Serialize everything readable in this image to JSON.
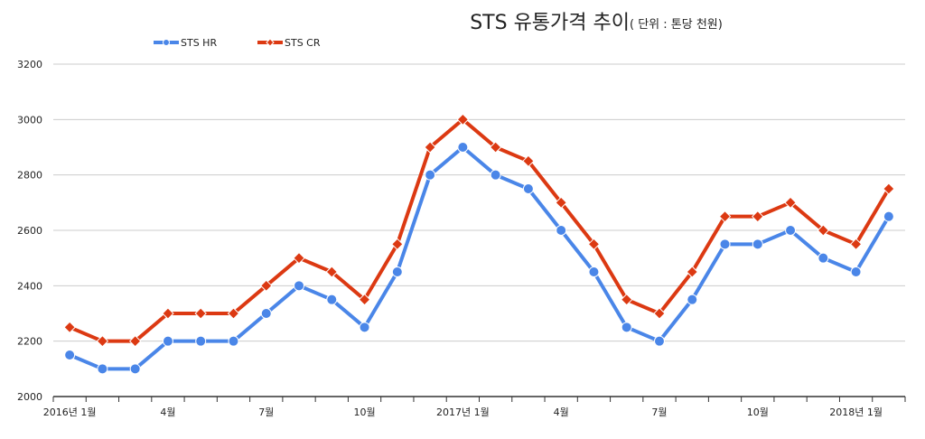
{
  "chart_data": {
    "type": "line",
    "title": "STS 유통가격 추이",
    "subtitle": "( 단위 : 톤당 천원)",
    "xlabel": "",
    "ylabel": "",
    "ylim": [
      2000,
      3200
    ],
    "yticks": [
      2000,
      2200,
      2400,
      2600,
      2800,
      3000,
      3200
    ],
    "grid": true,
    "legend": "top-left",
    "x": [
      "2016-01",
      "2016-02",
      "2016-03",
      "2016-04",
      "2016-05",
      "2016-06",
      "2016-07",
      "2016-08",
      "2016-09",
      "2016-10",
      "2016-11",
      "2016-12",
      "2017-01",
      "2017-02",
      "2017-03",
      "2017-04",
      "2017-05",
      "2017-06",
      "2017-07",
      "2017-08",
      "2017-09",
      "2017-10",
      "2017-11",
      "2017-12",
      "2018-01",
      "2018-02"
    ],
    "xtick_labels": [
      {
        "index": 0,
        "label": "2016년 1월"
      },
      {
        "index": 3,
        "label": "4월"
      },
      {
        "index": 6,
        "label": "7월"
      },
      {
        "index": 9,
        "label": "10월"
      },
      {
        "index": 12,
        "label": "2017년 1월"
      },
      {
        "index": 15,
        "label": "4월"
      },
      {
        "index": 18,
        "label": "7월"
      },
      {
        "index": 21,
        "label": "10월"
      },
      {
        "index": 24,
        "label": "2018년 1월"
      }
    ],
    "series": [
      {
        "name": "STS HR",
        "color": "#4a86e8",
        "marker": "circle",
        "values": [
          2150,
          2100,
          2100,
          2200,
          2200,
          2200,
          2300,
          2400,
          2350,
          2250,
          2450,
          2800,
          2900,
          2800,
          2750,
          2600,
          2450,
          2250,
          2200,
          2350,
          2550,
          2550,
          2600,
          2500,
          2450,
          2650
        ]
      },
      {
        "name": "STS CR",
        "color": "#dc3912",
        "marker": "diamond",
        "values": [
          2250,
          2200,
          2200,
          2300,
          2300,
          2300,
          2400,
          2500,
          2450,
          2350,
          2550,
          2900,
          3000,
          2900,
          2850,
          2700,
          2550,
          2350,
          2300,
          2450,
          2650,
          2650,
          2700,
          2600,
          2550,
          2750
        ]
      }
    ]
  }
}
